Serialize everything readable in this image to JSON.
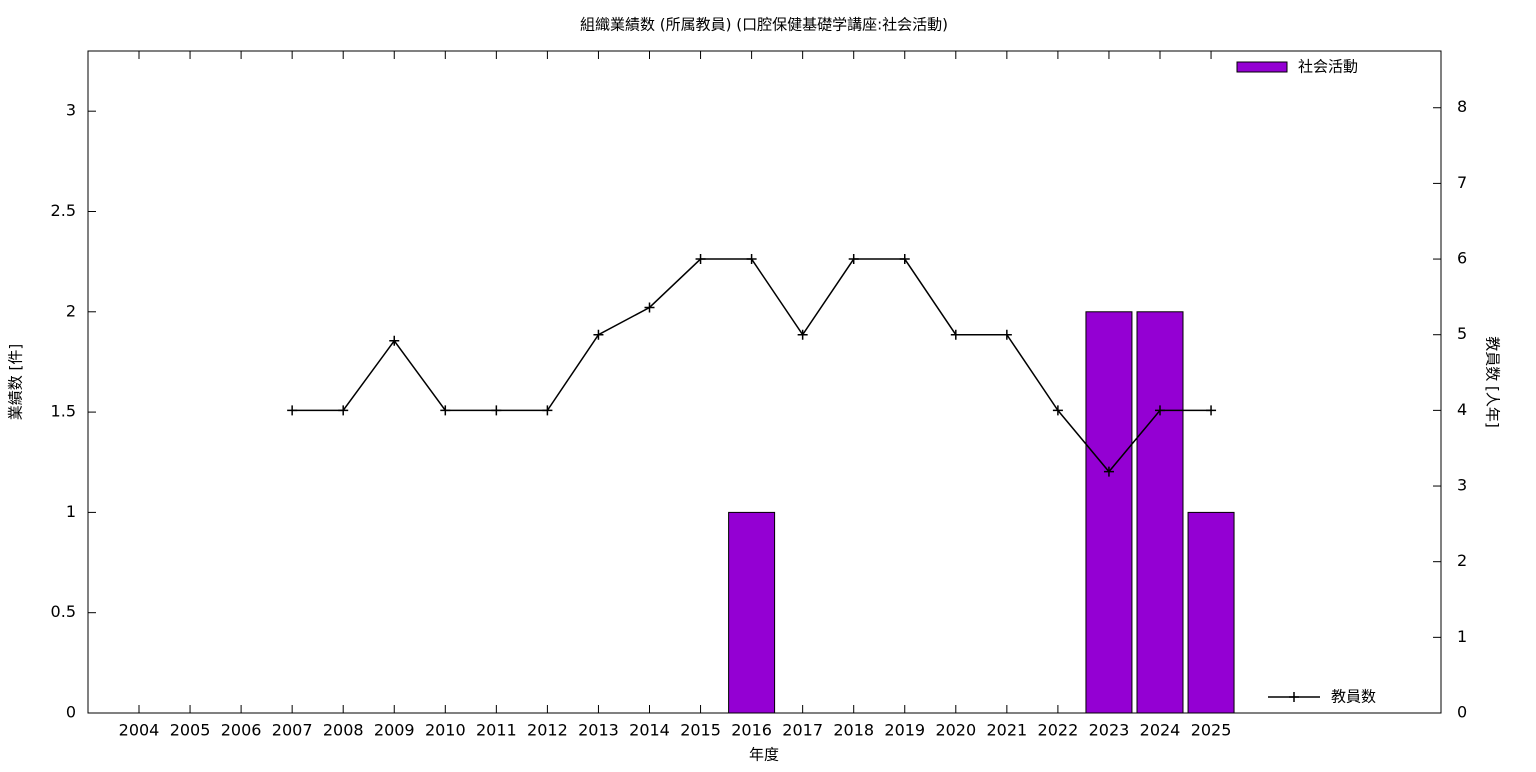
{
  "chart_data": {
    "type": "bar+line",
    "title": "組織業績数 (所属教員) (口腔保健基礎学講座:社会活動)",
    "x_label": "年度",
    "y_label": "業績数 [件]",
    "y2_label": "教員数 [人年]",
    "categories": [
      "2004",
      "2005",
      "2006",
      "2007",
      "2008",
      "2009",
      "2010",
      "2011",
      "2012",
      "2013",
      "2014",
      "2015",
      "2016",
      "2017",
      "2018",
      "2019",
      "2020",
      "2021",
      "2022",
      "2023",
      "2024",
      "2025"
    ],
    "series": [
      {
        "name": "社会活動",
        "type": "bar",
        "color": "#9400d3",
        "values": [
          0,
          0,
          0,
          0,
          0,
          0,
          0,
          0,
          0,
          0,
          0,
          0,
          1,
          0,
          0,
          0,
          0,
          0,
          0,
          2,
          2,
          1
        ]
      },
      {
        "name": "教員数",
        "type": "line",
        "axis": "y2",
        "color": "#000000",
        "values": [
          null,
          null,
          null,
          4,
          4,
          4.92,
          4,
          4,
          4,
          5,
          5.36,
          6,
          6,
          5,
          6,
          6,
          5,
          5,
          4,
          3.19,
          4,
          4
        ]
      }
    ],
    "ylim": [
      0,
      3.3
    ],
    "yticks": [
      0,
      0.5,
      1,
      1.5,
      2,
      2.5,
      3
    ],
    "y2lim": [
      0,
      8.75
    ],
    "y2ticks": [
      0,
      1,
      2,
      3,
      4,
      5,
      6,
      7,
      8
    ]
  }
}
